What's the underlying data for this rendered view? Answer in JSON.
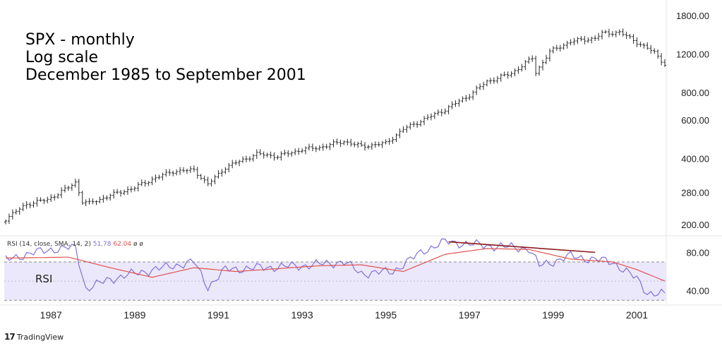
{
  "title_lines": [
    "SPX - monthly",
    "Log scale",
    "December 1985 to September 2001"
  ],
  "rsi": {
    "tag": "RSI",
    "legend_label": "RSI (14, close, SMA, 14, 2)",
    "legend_value1": "51.78",
    "legend_value2": "62.04",
    "legend_extra": "ø ø"
  },
  "footer": {
    "logo": "17",
    "brand": "TradingView"
  },
  "chart_data": [
    {
      "type": "ohlc",
      "scale": "log",
      "y_tick_labels": [
        "1800.00",
        "1200.00",
        "800.00",
        "600.00",
        "400.00",
        "280.00",
        "200.00"
      ],
      "x_tick_labels": [
        "1987",
        "1989",
        "1991",
        "1993",
        "1995",
        "1997",
        "1999",
        "2001"
      ],
      "series": [
        {
          "x": [
            "1985-12",
            "1986-06",
            "1986-12",
            "1987-06",
            "1987-08",
            "1987-10",
            "1987-12",
            "1988-06",
            "1989-01",
            "1989-06",
            "1989-12",
            "1990-06",
            "1990-10",
            "1991-03",
            "1991-12",
            "1992-06",
            "1993-01",
            "1993-06",
            "1994-01",
            "1994-06",
            "1995-01",
            "1995-06",
            "1996-01",
            "1996-06",
            "1997-01",
            "1997-06",
            "1998-01",
            "1998-07",
            "1998-08",
            "1998-12",
            "1999-06",
            "2000-01",
            "2000-03",
            "2000-08",
            "2001-01",
            "2001-06",
            "2001-09"
          ],
          "values": [
            212,
            248,
            260,
            295,
            312,
            255,
            250,
            272,
            295,
            322,
            350,
            355,
            305,
            365,
            420,
            410,
            440,
            450,
            480,
            455,
            470,
            545,
            615,
            670,
            780,
            900,
            980,
            1150,
            990,
            1230,
            1370,
            1420,
            1490,
            1510,
            1360,
            1220,
            1080
          ]
        }
      ]
    },
    {
      "type": "line",
      "title": "RSI",
      "y_tick_labels": [
        "80.00",
        "40.00"
      ],
      "levels": [
        70,
        30
      ],
      "series": [
        {
          "x": [
            "1985-12",
            "1986-06",
            "1987-01",
            "1987-08",
            "1987-11",
            "1988-06",
            "1989-01",
            "1989-12",
            "1990-06",
            "1990-10",
            "1991-03",
            "1992-01",
            "1993-01",
            "1994-01",
            "1994-06",
            "1995-03",
            "1995-12",
            "1996-06",
            "1997-06",
            "1998-06",
            "1998-09",
            "1999-06",
            "2000-06",
            "2001-01",
            "2001-04",
            "2001-09"
          ],
          "values": [
            72,
            78,
            83,
            85,
            42,
            52,
            58,
            66,
            70,
            44,
            62,
            64,
            66,
            70,
            58,
            60,
            82,
            91,
            87,
            84,
            66,
            76,
            70,
            52,
            38,
            36
          ]
        },
        {
          "x": [
            "1985-12",
            "1987-06",
            "1988-06",
            "1989-06",
            "1990-06",
            "1991-06",
            "1992-06",
            "1993-06",
            "1994-06",
            "1995-06",
            "1996-06",
            "1997-06",
            "1998-06",
            "1999-06",
            "2000-06",
            "2001-01",
            "2001-09"
          ],
          "values": [
            74,
            75,
            64,
            54,
            64,
            60,
            63,
            66,
            67,
            60,
            78,
            84,
            83,
            73,
            70,
            62,
            50
          ]
        }
      ],
      "trendline": {
        "x": [
          "1996-07",
          "2000-01"
        ],
        "values": [
          91,
          80
        ]
      }
    }
  ]
}
